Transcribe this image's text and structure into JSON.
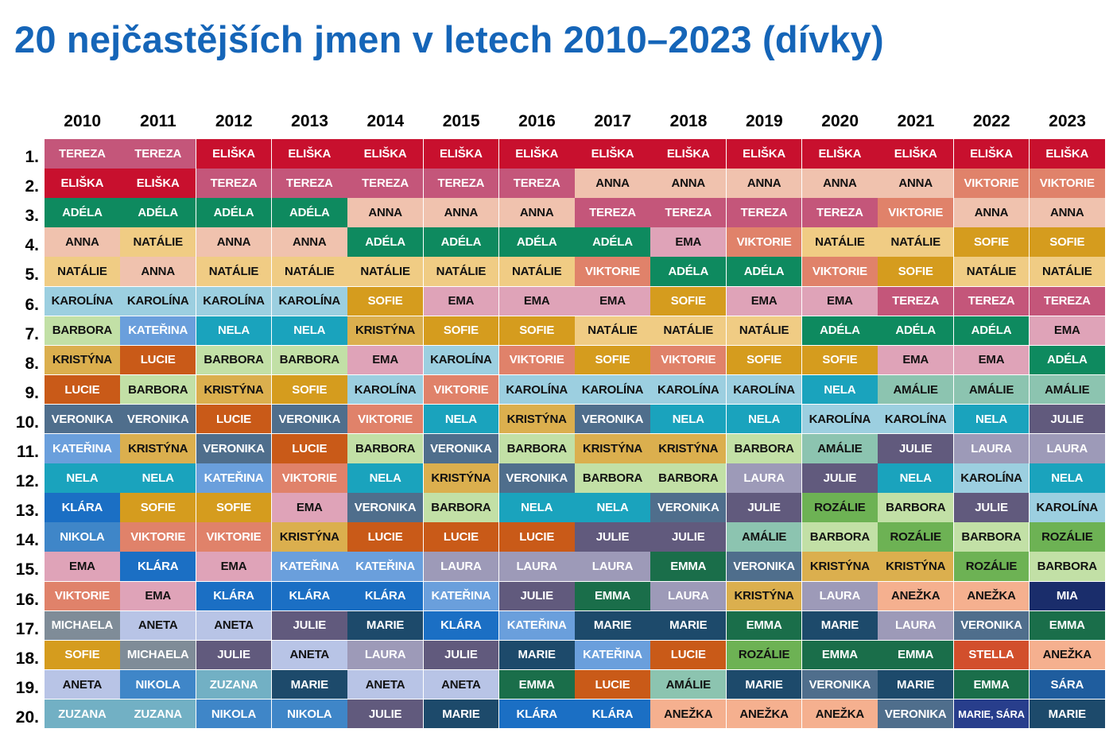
{
  "chart_data": {
    "type": "table",
    "title": "20 nejčastějších jmen v letech 2010–2023 (dívky)",
    "years": [
      "2010",
      "2011",
      "2012",
      "2013",
      "2014",
      "2015",
      "2016",
      "2017",
      "2018",
      "2019",
      "2020",
      "2021",
      "2022",
      "2023"
    ],
    "ranks": [
      "1.",
      "2.",
      "3.",
      "4.",
      "5.",
      "6.",
      "7.",
      "8.",
      "9.",
      "10.",
      "11.",
      "12.",
      "13.",
      "14.",
      "15.",
      "16.",
      "17.",
      "18.",
      "19.",
      "20."
    ],
    "table": [
      [
        "Tereza",
        "Eliška",
        "Adéla",
        "Anna",
        "Natálie",
        "Karolína",
        "Barbora",
        "Kristýna",
        "Lucie",
        "Veronika",
        "Kateřina",
        "Nela",
        "Klára",
        "Nikola",
        "Ema",
        "Viktorie",
        "Michaela",
        "Sofie",
        "Aneta",
        "Zuzana"
      ],
      [
        "Tereza",
        "Eliška",
        "Adéla",
        "Natálie",
        "Anna",
        "Karolína",
        "Kateřina",
        "Lucie",
        "Barbora",
        "Veronika",
        "Kristýna",
        "Nela",
        "Sofie",
        "Viktorie",
        "Klára",
        "Ema",
        "Aneta",
        "Michaela",
        "Nikola",
        "Zuzana"
      ],
      [
        "Eliška",
        "Tereza",
        "Adéla",
        "Anna",
        "Natálie",
        "Karolína",
        "Nela",
        "Barbora",
        "Kristýna",
        "Lucie",
        "Veronika",
        "Kateřina",
        "Sofie",
        "Viktorie",
        "Ema",
        "Klára",
        "Aneta",
        "Julie",
        "Zuzana",
        "Nikola"
      ],
      [
        "Eliška",
        "Tereza",
        "Adéla",
        "Anna",
        "Natálie",
        "Karolína",
        "Nela",
        "Barbora",
        "Sofie",
        "Veronika",
        "Lucie",
        "Viktorie",
        "Ema",
        "Kristýna",
        "Kateřina",
        "Klára",
        "Julie",
        "Aneta",
        "Marie",
        "Nikola"
      ],
      [
        "Eliška",
        "Tereza",
        "Anna",
        "Adéla",
        "Natálie",
        "Sofie",
        "Kristýna",
        "Ema",
        "Karolína",
        "Viktorie",
        "Barbora",
        "Nela",
        "Veronika",
        "Lucie",
        "Kateřina",
        "Klára",
        "Marie",
        "Laura",
        "Aneta",
        "Julie"
      ],
      [
        "Eliška",
        "Tereza",
        "Anna",
        "Adéla",
        "Natálie",
        "Ema",
        "Sofie",
        "Karolína",
        "Viktorie",
        "Nela",
        "Veronika",
        "Kristýna",
        "Barbora",
        "Lucie",
        "Laura",
        "Kateřina",
        "Klára",
        "Julie",
        "Aneta",
        "Marie"
      ],
      [
        "Eliška",
        "Tereza",
        "Anna",
        "Adéla",
        "Natálie",
        "Ema",
        "Sofie",
        "Viktorie",
        "Karolína",
        "Kristýna",
        "Barbora",
        "Veronika",
        "Nela",
        "Lucie",
        "Laura",
        "Julie",
        "Kateřina",
        "Marie",
        "Emma",
        "Klára"
      ],
      [
        "Eliška",
        "Anna",
        "Tereza",
        "Adéla",
        "Viktorie",
        "Ema",
        "Natálie",
        "Sofie",
        "Karolína",
        "Veronika",
        "Kristýna",
        "Barbora",
        "Nela",
        "Julie",
        "Laura",
        "Emma",
        "Marie",
        "Kateřina",
        "Lucie",
        "Klára"
      ],
      [
        "Eliška",
        "Anna",
        "Tereza",
        "Ema",
        "Adéla",
        "Sofie",
        "Natálie",
        "Viktorie",
        "Karolína",
        "Nela",
        "Kristýna",
        "Barbora",
        "Veronika",
        "Julie",
        "Emma",
        "Laura",
        "Marie",
        "Lucie",
        "Amálie",
        "Anežka"
      ],
      [
        "Eliška",
        "Anna",
        "Tereza",
        "Viktorie",
        "Adéla",
        "Ema",
        "Natálie",
        "Sofie",
        "Karolína",
        "Nela",
        "Barbora",
        "Laura",
        "Julie",
        "Amálie",
        "Veronika",
        "Kristýna",
        "Emma",
        "Rozálie",
        "Marie",
        "Anežka"
      ],
      [
        "Eliška",
        "Anna",
        "Tereza",
        "Natálie",
        "Viktorie",
        "Ema",
        "Adéla",
        "Sofie",
        "Nela",
        "Karolína",
        "Amálie",
        "Julie",
        "Rozálie",
        "Barbora",
        "Kristýna",
        "Laura",
        "Marie",
        "Emma",
        "Veronika",
        "Anežka"
      ],
      [
        "Eliška",
        "Anna",
        "Viktorie",
        "Natálie",
        "Sofie",
        "Tereza",
        "Adéla",
        "Ema",
        "Amálie",
        "Karolína",
        "Julie",
        "Nela",
        "Barbora",
        "Rozálie",
        "Kristýna",
        "Anežka",
        "Laura",
        "Emma",
        "Marie",
        "Veronika"
      ],
      [
        "Eliška",
        "Viktorie",
        "Anna",
        "Sofie",
        "Natálie",
        "Tereza",
        "Adéla",
        "Ema",
        "Amálie",
        "Nela",
        "Laura",
        "Karolína",
        "Julie",
        "Barbora",
        "Rozálie",
        "Anežka",
        "Veronika",
        "Stella",
        "Emma",
        "Marie, Sára"
      ],
      [
        "Eliška",
        "Viktorie",
        "Anna",
        "Sofie",
        "Natálie",
        "Tereza",
        "Ema",
        "Adéla",
        "Amálie",
        "Julie",
        "Laura",
        "Nela",
        "Karolína",
        "Rozálie",
        "Barbora",
        "Mia",
        "Emma",
        "Anežka",
        "Sára",
        "Marie"
      ]
    ],
    "name_colors": {
      "Tereza": "#c4567a",
      "Eliška": "#c8102e",
      "Adéla": "#0e8a5f",
      "Anna": "#f0c2ae",
      "Natálie": "#f0cc84",
      "Karolína": "#9ccfe0",
      "Barbora": "#c2e0a6",
      "Kristýna": "#dbaf4e",
      "Lucie": "#c95a18",
      "Veronika": "#4f6e8c",
      "Kateřina": "#6a9fdc",
      "Nela": "#1aa3bd",
      "Klára": "#1b6fc4",
      "Nikola": "#3f86c8",
      "Ema": "#dfa3b8",
      "Viktorie": "#e0826a",
      "Michaela": "#7f8c98",
      "Sofie": "#d59c1e",
      "Aneta": "#b8c4e6",
      "Zuzana": "#72b0c4",
      "Julie": "#615a7d",
      "Marie": "#1d4a6b",
      "Laura": "#9d9ab8",
      "Emma": "#1a6e4a",
      "Amálie": "#8cc4b0",
      "Anežka": "#f5b08f",
      "Rozálie": "#6db254",
      "Stella": "#d24f2c",
      "Mia": "#1a2d6b",
      "Sára": "#1f5d9e",
      "Marie, Sára": "#283e8c"
    },
    "light_text_names": [
      "Tereza",
      "Eliška",
      "Adéla",
      "Lucie",
      "Veronika",
      "Kateřina",
      "Nela",
      "Klára",
      "Nikola",
      "Viktorie",
      "Michaela",
      "Sofie",
      "Zuzana",
      "Julie",
      "Marie",
      "Laura",
      "Emma",
      "Stella",
      "Mia",
      "Sára",
      "Marie, Sára"
    ]
  }
}
